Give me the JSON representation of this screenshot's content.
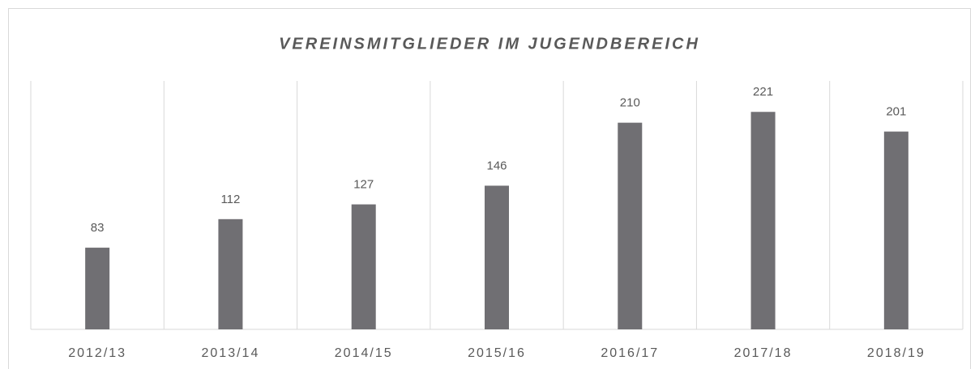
{
  "chart_data": {
    "type": "bar",
    "title": "VEREINSMITGLIEDER IM JUGENDBEREICH",
    "categories": [
      "2012/13",
      "2013/14",
      "2014/15",
      "2015/16",
      "2016/17",
      "2017/18",
      "2018/19"
    ],
    "values": [
      83,
      112,
      127,
      146,
      210,
      221,
      201
    ],
    "color": "#706f73",
    "ylim": [
      0,
      250
    ]
  }
}
